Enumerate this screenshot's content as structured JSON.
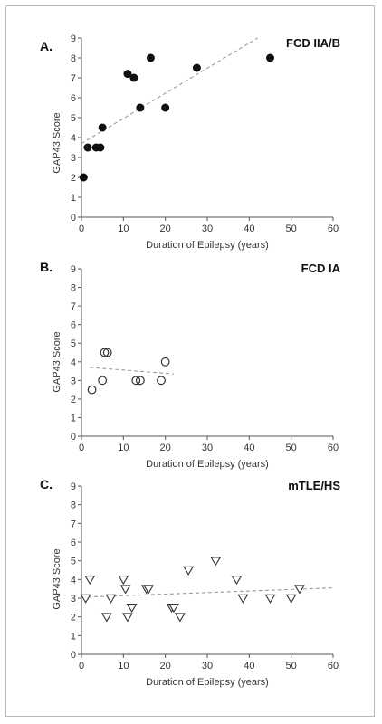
{
  "chart_data": [
    {
      "type": "scatter",
      "panel_label": "A.",
      "title": "FCD IIA/B",
      "xlabel": "Duration of Epilepsy (years)",
      "ylabel": "GAP43 Score",
      "xlim": [
        0,
        60
      ],
      "ylim": [
        0,
        9
      ],
      "x_ticks": [
        0,
        10,
        20,
        30,
        40,
        50,
        60
      ],
      "y_ticks": [
        0,
        1,
        2,
        3,
        4,
        5,
        6,
        7,
        8,
        9
      ],
      "marker": "filled-circle",
      "series": [
        {
          "points": [
            [
              0.5,
              2
            ],
            [
              1.5,
              3.5
            ],
            [
              3.5,
              3.5
            ],
            [
              4.5,
              3.5
            ],
            [
              5,
              4.5
            ],
            [
              11,
              7.2
            ],
            [
              12.5,
              7
            ],
            [
              14,
              5.5
            ],
            [
              16.5,
              8
            ],
            [
              20,
              5.5
            ],
            [
              27.5,
              7.5
            ],
            [
              45,
              8
            ]
          ]
        }
      ],
      "trendline": {
        "style": "dashed",
        "points": [
          [
            0,
            3.7
          ],
          [
            42,
            9
          ]
        ]
      }
    },
    {
      "type": "scatter",
      "panel_label": "B.",
      "title": "FCD IA",
      "xlabel": "Duration of Epilepsy (years)",
      "ylabel": "GAP43 Score",
      "xlim": [
        0,
        60
      ],
      "ylim": [
        0,
        9
      ],
      "x_ticks": [
        0,
        10,
        20,
        30,
        40,
        50,
        60
      ],
      "y_ticks": [
        0,
        1,
        2,
        3,
        4,
        5,
        6,
        7,
        8,
        9
      ],
      "marker": "open-circle",
      "series": [
        {
          "points": [
            [
              2.5,
              2.5
            ],
            [
              5,
              3
            ],
            [
              5.5,
              4.5
            ],
            [
              6.2,
              4.5
            ],
            [
              13,
              3
            ],
            [
              14,
              3
            ],
            [
              19,
              3
            ],
            [
              20,
              4
            ]
          ]
        }
      ],
      "trendline": {
        "style": "dashed",
        "points": [
          [
            2,
            3.7
          ],
          [
            22,
            3.35
          ]
        ]
      }
    },
    {
      "type": "scatter",
      "panel_label": "C.",
      "title": "mTLE/HS",
      "xlabel": "Duration of Epilepsy (years)",
      "ylabel": "GAP43 Score",
      "xlim": [
        0,
        60
      ],
      "ylim": [
        0,
        9
      ],
      "x_ticks": [
        0,
        10,
        20,
        30,
        40,
        50,
        60
      ],
      "y_ticks": [
        0,
        1,
        2,
        3,
        4,
        5,
        6,
        7,
        8,
        9
      ],
      "marker": "open-triangle-down",
      "series": [
        {
          "points": [
            [
              1,
              3
            ],
            [
              2,
              4
            ],
            [
              6,
              2
            ],
            [
              7,
              3
            ],
            [
              10,
              4
            ],
            [
              10.5,
              3.5
            ],
            [
              11,
              2
            ],
            [
              12,
              2.5
            ],
            [
              15.5,
              3.5
            ],
            [
              16,
              3.5
            ],
            [
              21.5,
              2.5
            ],
            [
              22,
              2.5
            ],
            [
              23.5,
              2
            ],
            [
              25.5,
              4.5
            ],
            [
              32,
              5
            ],
            [
              37,
              4
            ],
            [
              38.5,
              3
            ],
            [
              45,
              3
            ],
            [
              50,
              3
            ],
            [
              52,
              3.5
            ]
          ]
        }
      ],
      "trendline": {
        "style": "dashed",
        "points": [
          [
            0,
            3.05
          ],
          [
            60,
            3.55
          ]
        ]
      }
    }
  ]
}
